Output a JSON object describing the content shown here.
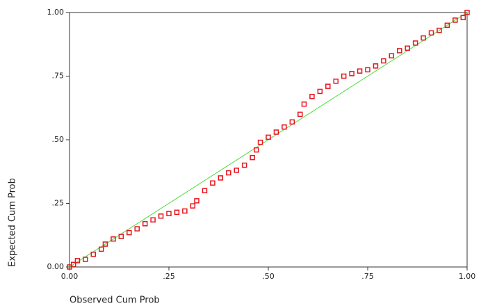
{
  "chart_data": {
    "type": "scatter",
    "x_label": "Observed Cum Prob",
    "y_label": "Expected Cum Prob",
    "xlim": [
      0,
      1
    ],
    "ylim": [
      0,
      1
    ],
    "xticks": [
      {
        "value": 0,
        "label": "0.00"
      },
      {
        "value": 0.25,
        "label": ".25"
      },
      {
        "value": 0.5,
        "label": ".50"
      },
      {
        "value": 0.75,
        "label": ".75"
      },
      {
        "value": 1,
        "label": "1.00"
      }
    ],
    "yticks": [
      {
        "value": 0,
        "label": "0.00"
      },
      {
        "value": 0.25,
        "label": ".25"
      },
      {
        "value": 0.5,
        "label": ".50"
      },
      {
        "value": 0.75,
        "label": ".75"
      },
      {
        "value": 1,
        "label": "1.00"
      }
    ],
    "color": "#e8141c",
    "diagonal": true,
    "diagonal_color": "#44dd33",
    "x": [
      0,
      0.01,
      0.02,
      0.04,
      0.06,
      0.08,
      0.09,
      0.11,
      0.13,
      0.15,
      0.17,
      0.19,
      0.21,
      0.23,
      0.25,
      0.27,
      0.29,
      0.31,
      0.32,
      0.34,
      0.36,
      0.38,
      0.4,
      0.42,
      0.44,
      0.46,
      0.47,
      0.48,
      0.5,
      0.52,
      0.54,
      0.56,
      0.58,
      0.59,
      0.61,
      0.63,
      0.65,
      0.67,
      0.69,
      0.71,
      0.73,
      0.75,
      0.77,
      0.79,
      0.81,
      0.83,
      0.85,
      0.87,
      0.89,
      0.91,
      0.93,
      0.95,
      0.97,
      0.99,
      1
    ],
    "values": [
      0,
      0.01,
      0.025,
      0.03,
      0.05,
      0.07,
      0.09,
      0.11,
      0.12,
      0.135,
      0.15,
      0.17,
      0.185,
      0.2,
      0.21,
      0.215,
      0.22,
      0.24,
      0.26,
      0.3,
      0.33,
      0.35,
      0.37,
      0.38,
      0.4,
      0.43,
      0.46,
      0.49,
      0.51,
      0.53,
      0.55,
      0.57,
      0.6,
      0.64,
      0.67,
      0.69,
      0.71,
      0.73,
      0.75,
      0.76,
      0.77,
      0.775,
      0.79,
      0.81,
      0.83,
      0.85,
      0.86,
      0.88,
      0.9,
      0.92,
      0.93,
      0.95,
      0.97,
      0.98,
      1
    ]
  }
}
